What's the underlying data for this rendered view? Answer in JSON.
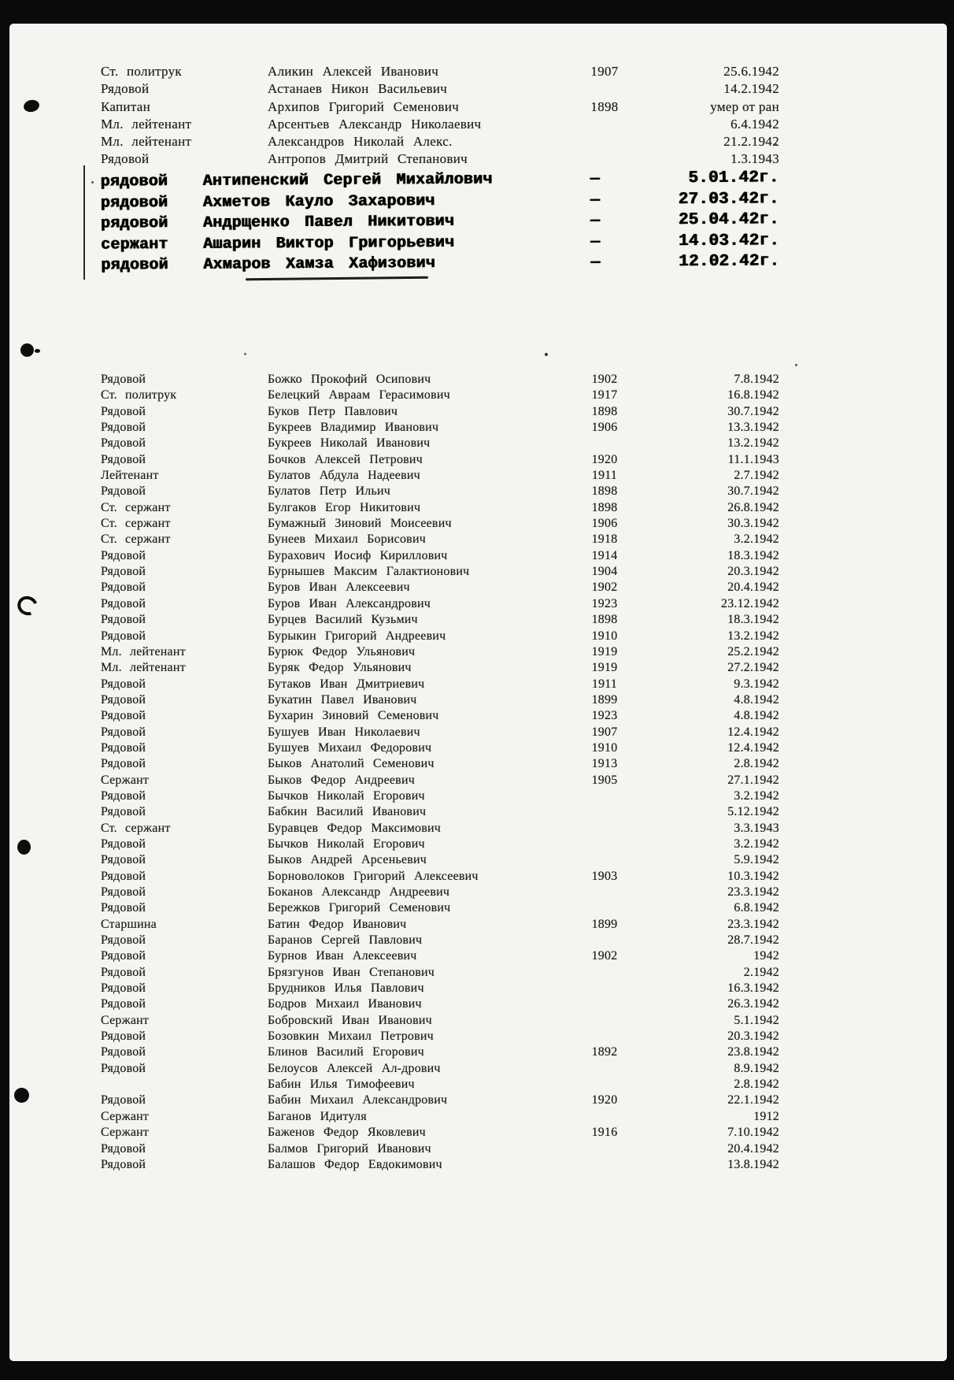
{
  "top_section": {
    "rows": [
      {
        "rank": "Ст.  политрук",
        "name": "Аликин  Алексей  Иванович",
        "year": "1907",
        "date": "25.6.1942"
      },
      {
        "rank": "Рядовой",
        "name": "Астанаев  Никон  Васильевич",
        "year": "",
        "date": "14.2.1942"
      },
      {
        "rank": "Капитан",
        "name": "Архипов  Григорий  Семенович",
        "year": "1898",
        "date": "умер от ран"
      },
      {
        "rank": "Мл.  лейтенант",
        "name": "Арсентьев  Александр  Николаевич",
        "year": "",
        "date": "6.4.1942"
      },
      {
        "rank": "Мл.  лейтенант",
        "name": "Александров  Николай  Алекс.",
        "year": "",
        "date": "21.2.1942"
      },
      {
        "rank": "Рядовой",
        "name": "Антропов  Дмитрий  Степанович",
        "year": "",
        "date": "1.3.1943"
      }
    ]
  },
  "typed_section": {
    "dash": "—",
    "rows": [
      {
        "rank": "рядовой",
        "name": "Антипенский Сергей Михайлович",
        "date": "5.01.42г."
      },
      {
        "rank": "рядовой",
        "name": "Ахметов Кауло Захарович",
        "date": "27.03.42г."
      },
      {
        "rank": "рядовой",
        "name": "Андрщенко Павел Никитович",
        "date": "25.04.42г."
      },
      {
        "rank": "сержант",
        "name": "Ашарин Виктор Григорьевич",
        "date": "14.03.42г."
      },
      {
        "rank": "рядовой",
        "name": "Ахмаров Хамза Хафизович",
        "date": "12.02.42г."
      }
    ]
  },
  "main_section": {
    "rows": [
      {
        "rank": "Рядовой",
        "name": "Божко  Прокофий  Осипович",
        "year": "1902",
        "date": "7.8.1942"
      },
      {
        "rank": "Ст.  политрук",
        "name": "Белецкий  Авраам  Герасимович",
        "year": "1917",
        "date": "16.8.1942"
      },
      {
        "rank": "Рядовой",
        "name": "Буков  Петр  Павлович",
        "year": "1898",
        "date": "30.7.1942"
      },
      {
        "rank": "Рядовой",
        "name": "Букреев  Владимир  Иванович",
        "year": "1906",
        "date": "13.3.1942"
      },
      {
        "rank": "Рядовой",
        "name": "Букреев  Николай  Иванович",
        "year": "",
        "date": "13.2.1942"
      },
      {
        "rank": "Рядовой",
        "name": "Бочков  Алексей  Петрович",
        "year": "1920",
        "date": "11.1.1943"
      },
      {
        "rank": "Лейтенант",
        "name": "Булатов  Абдула  Надеевич",
        "year": "1911",
        "date": "2.7.1942"
      },
      {
        "rank": "Рядовой",
        "name": "Булатов  Петр  Ильич",
        "year": "1898",
        "date": "30.7.1942"
      },
      {
        "rank": "Ст.  сержант",
        "name": "Булгаков  Егор  Никитович",
        "year": "1898",
        "date": "26.8.1942"
      },
      {
        "rank": "Ст.  сержант",
        "name": "Бумажный  Зиновий  Моисеевич",
        "year": "1906",
        "date": "30.3.1942"
      },
      {
        "rank": "Ст.  сержант",
        "name": "Бунеев  Михаил  Борисович",
        "year": "1918",
        "date": "3.2.1942"
      },
      {
        "rank": "Рядовой",
        "name": "Бурахович  Иосиф  Кириллович",
        "year": "1914",
        "date": "18.3.1942"
      },
      {
        "rank": "Рядовой",
        "name": "Бурнышев  Максим  Галактионович",
        "year": "1904",
        "date": "20.3.1942"
      },
      {
        "rank": "Рядовой",
        "name": "Буров  Иван  Алексеевич",
        "year": "1902",
        "date": "20.4.1942"
      },
      {
        "rank": "Рядовой",
        "name": "Буров  Иван  Александрович",
        "year": "1923",
        "date": "23.12.1942"
      },
      {
        "rank": "Рядовой",
        "name": "Бурцев  Василий  Кузьмич",
        "year": "1898",
        "date": "18.3.1942"
      },
      {
        "rank": "Рядовой",
        "name": "Бурыкин  Григорий  Андреевич",
        "year": "1910",
        "date": "13.2.1942"
      },
      {
        "rank": "Мл.  лейтенант",
        "name": "Бурюк  Федор  Ульянович",
        "year": "1919",
        "date": "25.2.1942"
      },
      {
        "rank": "Мл.  лейтенант",
        "name": "Буряк  Федор  Ульянович",
        "year": "1919",
        "date": "27.2.1942"
      },
      {
        "rank": "Рядовой",
        "name": "Бутаков  Иван  Дмитриевич",
        "year": "1911",
        "date": "9.3.1942"
      },
      {
        "rank": "Рядовой",
        "name": "Букатин  Павел  Иванович",
        "year": "1899",
        "date": "4.8.1942"
      },
      {
        "rank": "Рядовой",
        "name": "Бухарин  Зиновий  Семенович",
        "year": "1923",
        "date": "4.8.1942"
      },
      {
        "rank": "Рядовой",
        "name": "Бушуев  Иван  Николаевич",
        "year": "1907",
        "date": "12.4.1942"
      },
      {
        "rank": "Рядовой",
        "name": "Бушуев  Михаил  Федорович",
        "year": "1910",
        "date": "12.4.1942"
      },
      {
        "rank": "Рядовой",
        "name": "Быков  Анатолий  Семенович",
        "year": "1913",
        "date": "2.8.1942"
      },
      {
        "rank": "Сержант",
        "name": "Быков  Федор  Андреевич",
        "year": "1905",
        "date": "27.1.1942"
      },
      {
        "rank": "Рядовой",
        "name": "Бычков  Николай  Егорович",
        "year": "",
        "date": "3.2.1942"
      },
      {
        "rank": "Рядовой",
        "name": "Бабкин  Василий  Иванович",
        "year": "",
        "date": "5.12.1942"
      },
      {
        "rank": "Ст.  сержант",
        "name": "Буравцев  Федор  Максимович",
        "year": "",
        "date": "3.3.1943"
      },
      {
        "rank": "Рядовой",
        "name": "Бычков  Николай  Егорович",
        "year": "",
        "date": "3.2.1942"
      },
      {
        "rank": "Рядовой",
        "name": "Быков  Андрей  Арсеньевич",
        "year": "",
        "date": "5.9.1942"
      },
      {
        "rank": "Рядовой",
        "name": "Борноволоков  Григорий  Алексеевич",
        "year": "1903",
        "date": "10.3.1942"
      },
      {
        "rank": "Рядовой",
        "name": "Боканов  Александр  Андреевич",
        "year": "",
        "date": "23.3.1942"
      },
      {
        "rank": "Рядовой",
        "name": "Бережков  Григорий  Семенович",
        "year": "",
        "date": "6.8.1942"
      },
      {
        "rank": "Старшина",
        "name": "Батин  Федор  Иванович",
        "year": "1899",
        "date": "23.3.1942"
      },
      {
        "rank": "Рядовой",
        "name": "Баранов  Сергей  Павлович",
        "year": "",
        "date": "28.7.1942"
      },
      {
        "rank": "Рядовой",
        "name": "Бурнов  Иван  Алексеевич",
        "year": "1902",
        "date": "1942"
      },
      {
        "rank": "Рядовой",
        "name": "Брязгунов  Иван  Степанович",
        "year": "",
        "date": "2.1942"
      },
      {
        "rank": "Рядовой",
        "name": "Брудников  Илья  Павлович",
        "year": "",
        "date": "16.3.1942"
      },
      {
        "rank": "Рядовой",
        "name": "Бодров  Михаил  Иванович",
        "year": "",
        "date": "26.3.1942"
      },
      {
        "rank": "Сержант",
        "name": "Бобровский  Иван  Иванович",
        "year": "",
        "date": "5.1.1942"
      },
      {
        "rank": "Рядовой",
        "name": "Бозовкин  Михаил  Петрович",
        "year": "",
        "date": "20.3.1942"
      },
      {
        "rank": "Рядовой",
        "name": "Блинов  Василий  Егорович",
        "year": "1892",
        "date": "23.8.1942"
      },
      {
        "rank": "Рядовой",
        "name": "Белоусов  Алексей  Ал-дрович",
        "year": "",
        "date": "8.9.1942"
      },
      {
        "rank": "",
        "name": "Бабин  Илья  Тимофеевич",
        "year": "",
        "date": "2.8.1942"
      },
      {
        "rank": "Рядовой",
        "name": "Бабин  Михаил  Александрович",
        "year": "1920",
        "date": "22.1.1942"
      },
      {
        "rank": "Сержант",
        "name": "Баганов  Идитуля",
        "year": "",
        "date": "1912"
      },
      {
        "rank": "Сержант",
        "name": "Баженов  Федор  Яковлевич",
        "year": "1916",
        "date": "7.10.1942"
      },
      {
        "rank": "Рядовой",
        "name": "Балмов  Григорий  Иванович",
        "year": "",
        "date": "20.4.1942"
      },
      {
        "rank": "Рядовой",
        "name": "Балашов  Федор  Евдокимович",
        "year": "",
        "date": "13.8.1942"
      }
    ]
  },
  "colors": {
    "paper": "#f5f4f0",
    "ink": "#1e1e1e",
    "typewriter_ink": "#000000",
    "scan_frame": "#0a0a0a"
  }
}
